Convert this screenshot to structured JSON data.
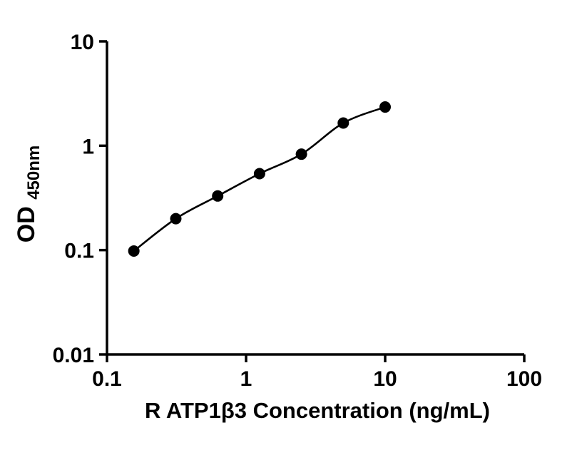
{
  "chart_data": {
    "type": "scatter",
    "title": "",
    "xlabel": "R ATP1β3 Concentration (ng/mL)",
    "ylabel_main": "OD",
    "ylabel_sub": "450nm",
    "x_scale": "log",
    "y_scale": "log",
    "xlim": [
      0.1,
      100
    ],
    "ylim": [
      0.01,
      10
    ],
    "x_ticks": [
      0.1,
      1,
      10,
      100
    ],
    "x_tick_labels": [
      "0.1",
      "1",
      "10",
      "100"
    ],
    "y_ticks": [
      0.01,
      0.1,
      1,
      10
    ],
    "y_tick_labels": [
      "0.01",
      "0.1",
      "1",
      "10"
    ],
    "points": [
      {
        "x": 0.156,
        "y": 0.098
      },
      {
        "x": 0.3125,
        "y": 0.2
      },
      {
        "x": 0.625,
        "y": 0.33
      },
      {
        "x": 1.25,
        "y": 0.54
      },
      {
        "x": 2.5,
        "y": 0.83
      },
      {
        "x": 5,
        "y": 1.65
      },
      {
        "x": 10,
        "y": 2.35
      }
    ],
    "curve_through_points": true,
    "marker_color": "#000000",
    "line_color": "#000000",
    "axis_color": "#000000",
    "background_color": "#ffffff",
    "grid": false,
    "legend": null
  }
}
